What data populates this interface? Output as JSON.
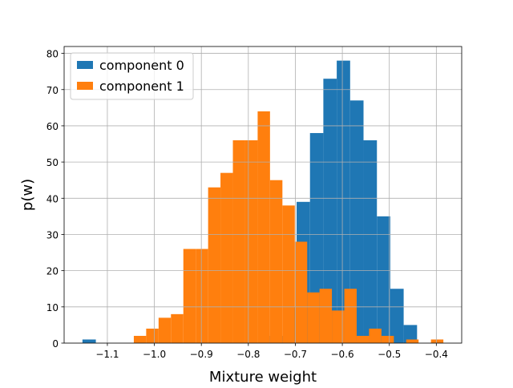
{
  "chart_data": {
    "type": "histogram",
    "xlabel": "Mixture weight",
    "ylabel": "p(w)",
    "xlim": [
      -1.192,
      -0.346
    ],
    "ylim": [
      0,
      81.9
    ],
    "xticks": [
      {
        "value": -1.1,
        "label": "−1.1"
      },
      {
        "value": -1.0,
        "label": "−1.0"
      },
      {
        "value": -0.9,
        "label": "−0.9"
      },
      {
        "value": -0.8,
        "label": "−0.8"
      },
      {
        "value": -0.7,
        "label": "−0.7"
      },
      {
        "value": -0.6,
        "label": "−0.6"
      },
      {
        "value": -0.5,
        "label": "−0.5"
      },
      {
        "value": -0.4,
        "label": "−0.4"
      }
    ],
    "yticks": [
      0,
      10,
      20,
      30,
      40,
      50,
      60,
      70,
      80
    ],
    "grid": true,
    "legend": "upper left",
    "series": [
      {
        "name": "component 0",
        "color": "#1f77b4",
        "bins": [
          -1.153,
          -1.1245,
          -1.096,
          -1.0676,
          -1.0391,
          -1.0106,
          -0.9821,
          -0.9536,
          -0.9252,
          -0.8967,
          -0.8682,
          -0.8397,
          -0.8112,
          -0.7828,
          -0.7543,
          -0.7258,
          -0.6973,
          -0.6688,
          -0.6404,
          -0.6119,
          -0.5834,
          -0.5549,
          -0.5264,
          -0.498,
          -0.4695,
          -0.441
        ],
        "values": [
          1,
          0,
          0,
          0,
          0,
          0,
          0,
          0,
          0,
          0,
          0,
          0,
          0,
          0,
          2,
          10,
          39,
          58,
          73,
          78,
          67,
          56,
          35,
          15,
          5
        ]
      },
      {
        "name": "component 1",
        "color": "#ff7f0e",
        "bins": [
          -1.0437,
          -1.0174,
          -0.991,
          -0.9647,
          -0.9383,
          -0.912,
          -0.8856,
          -0.8593,
          -0.8329,
          -0.8066,
          -0.7802,
          -0.7539,
          -0.7275,
          -0.7012,
          -0.6748,
          -0.6485,
          -0.6222,
          -0.5958,
          -0.5695,
          -0.5431,
          -0.5168,
          -0.4904,
          -0.4641,
          -0.4377,
          -0.4114,
          -0.385
        ],
        "values": [
          2,
          4,
          7,
          8,
          26,
          26,
          43,
          47,
          56,
          56,
          64,
          45,
          38,
          28,
          14,
          15,
          9,
          15,
          2,
          4,
          2,
          0,
          1,
          0,
          1
        ]
      }
    ]
  }
}
